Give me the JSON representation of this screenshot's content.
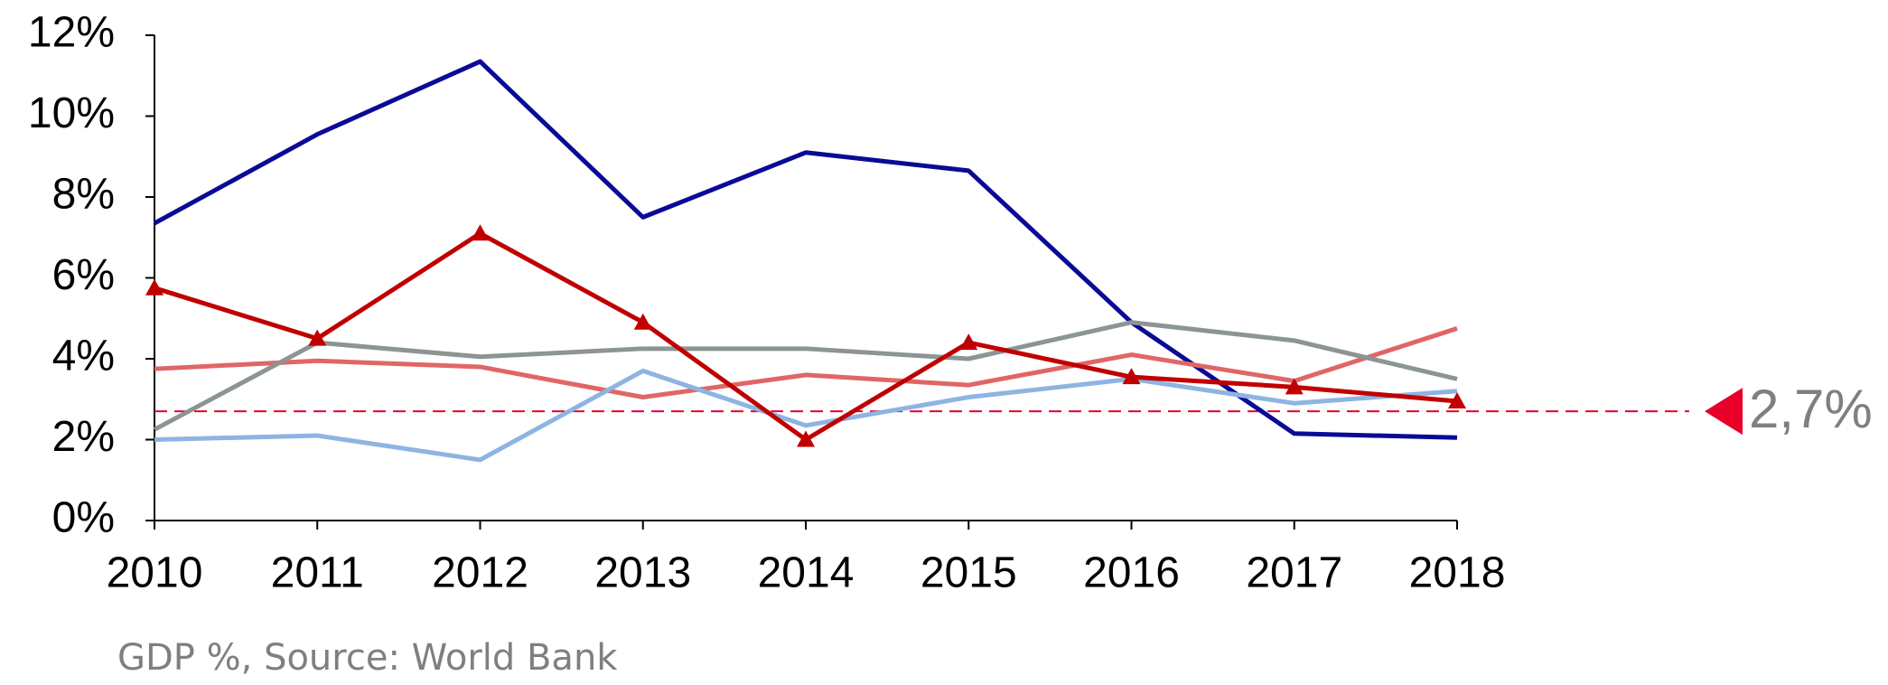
{
  "chart_data": {
    "type": "line",
    "categories": [
      "2010",
      "2011",
      "2012",
      "2013",
      "2014",
      "2015",
      "2016",
      "2017",
      "2018"
    ],
    "series": [
      {
        "color": "#0a0a96",
        "values": [
          7.35,
          9.55,
          11.35,
          7.5,
          9.1,
          8.65,
          4.9,
          2.15,
          2.05
        ]
      },
      {
        "color": "#e06666",
        "values": [
          3.75,
          3.95,
          3.8,
          3.05,
          3.6,
          3.35,
          4.1,
          3.45,
          4.75
        ]
      },
      {
        "color": "#8c9494",
        "values": [
          2.25,
          4.4,
          4.05,
          4.25,
          4.25,
          4.0,
          4.9,
          4.45,
          3.5
        ]
      },
      {
        "color": "#8db4e2",
        "values": [
          2.0,
          2.1,
          1.5,
          3.7,
          2.35,
          3.05,
          3.5,
          2.9,
          3.2
        ]
      },
      {
        "color": "#c00000",
        "marker": "triangle",
        "values": [
          5.75,
          4.5,
          7.1,
          4.9,
          2.0,
          4.4,
          3.55,
          3.3,
          2.95
        ]
      }
    ],
    "ylim": [
      0,
      12
    ],
    "yticks": [
      {
        "value": 0,
        "label": "0%"
      },
      {
        "value": 2,
        "label": "2%"
      },
      {
        "value": 4,
        "label": "4%"
      },
      {
        "value": 6,
        "label": "6%"
      },
      {
        "value": 8,
        "label": "8%"
      },
      {
        "value": 10,
        "label": "10%"
      },
      {
        "value": 12,
        "label": "12%"
      }
    ],
    "reference_line": {
      "value": 2.7,
      "label": "2,7%",
      "color": "#e8002a"
    },
    "footnote": "GDP %, Source: World Bank"
  }
}
